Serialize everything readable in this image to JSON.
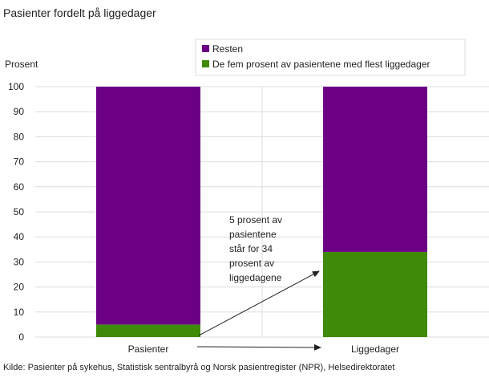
{
  "chart_data": {
    "type": "bar",
    "stacked": true,
    "title": "Pasienter fordelt på liggedager",
    "ylabel": "Prosent",
    "xlabel": "",
    "ylim": [
      0,
      100
    ],
    "yticks": [
      0,
      10,
      20,
      30,
      40,
      50,
      60,
      70,
      80,
      90,
      100
    ],
    "categories": [
      "Pasienter",
      "Liggedager"
    ],
    "series": [
      {
        "name": "De fem prosent av pasientene med flest liggedager",
        "values": [
          5,
          34
        ],
        "color": "#3f8a06"
      },
      {
        "name": "Resten",
        "values": [
          95,
          66
        ],
        "color": "#6b0085"
      }
    ],
    "legend_order": [
      "Resten",
      "De fem prosent av pasientene med flest liggedager"
    ],
    "legend_position": "top-right",
    "grid": true,
    "annotation": {
      "lines": [
        "5 prosent av",
        "pasientene",
        "står for 34",
        "prosent av",
        "liggedagene"
      ]
    },
    "source": "Kilde: Pasienter på sykehus, Statistisk sentralbyrå og Norsk pasientregister (NPR), Helsedirektoratet"
  }
}
